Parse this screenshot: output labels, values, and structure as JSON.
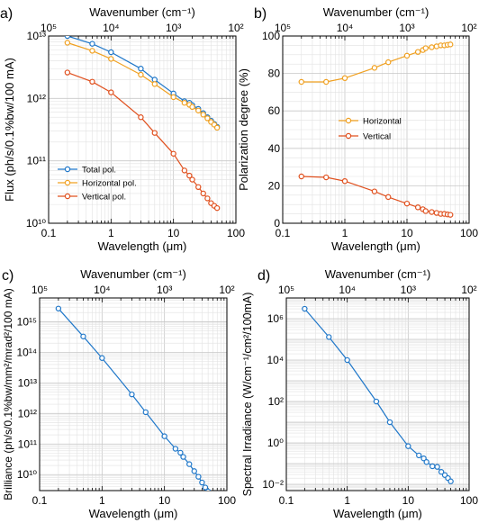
{
  "colors": {
    "total": "#1f77c9",
    "horizontal": "#f0a020",
    "vertical": "#e0501e"
  },
  "chart_data": [
    {
      "type": "line",
      "panel_label": "a)",
      "top_axis_label": "Wavenumber (cm⁻¹)",
      "top_tick_labels": [
        "10⁵",
        "10⁴",
        "10³",
        "10²"
      ],
      "xlabel": "Wavelength (μm)",
      "ylabel": "Flux (ph/s/0.1%bw/100 mA)",
      "xscale": "log",
      "yscale": "log",
      "xlim": [
        0.1,
        100
      ],
      "ylim": [
        10000000000.0,
        10000000000000.0
      ],
      "xtick_labels": [
        "0.1",
        "1",
        "10",
        "100"
      ],
      "ytick_labels": [
        "10¹⁰",
        "10¹¹",
        "10¹²",
        "10¹³"
      ],
      "legend_position": "lower-left",
      "series": [
        {
          "name": "Total pol.",
          "color": "total",
          "x": [
            0.2,
            0.5,
            1,
            3,
            5,
            10,
            15,
            18,
            20,
            25,
            30,
            35,
            40,
            45,
            50
          ],
          "y": [
            10000000000000.0,
            7500000000000.0,
            5500000000000.0,
            3000000000000.0,
            2000000000000.0,
            1200000000000.0,
            900000000000.0,
            850000000000.0,
            780000000000.0,
            680000000000.0,
            580000000000.0,
            500000000000.0,
            440000000000.0,
            390000000000.0,
            350000000000.0
          ]
        },
        {
          "name": "Horizontal pol.",
          "color": "horizontal",
          "x": [
            0.2,
            0.5,
            1,
            3,
            5,
            10,
            15,
            18,
            20,
            25,
            30,
            35,
            40,
            45,
            50
          ],
          "y": [
            7800000000000.0,
            5800000000000.0,
            4300000000000.0,
            2400000000000.0,
            1700000000000.0,
            1050000000000.0,
            850000000000.0,
            790000000000.0,
            730000000000.0,
            640000000000.0,
            550000000000.0,
            480000000000.0,
            420000000000.0,
            380000000000.0,
            340000000000.0
          ]
        },
        {
          "name": "Vertical pol.",
          "color": "vertical",
          "x": [
            0.2,
            0.5,
            1,
            3,
            5,
            10,
            15,
            18,
            20,
            25,
            30,
            35,
            40,
            45,
            50
          ],
          "y": [
            2600000000000.0,
            1850000000000.0,
            1250000000000.0,
            500000000000.0,
            280000000000.0,
            130000000000.0,
            70000000000.0,
            58000000000.0,
            50000000000.0,
            38000000000.0,
            30000000000.0,
            25000000000.0,
            21000000000.0,
            19000000000.0,
            17500000000.0
          ]
        }
      ]
    },
    {
      "type": "line",
      "panel_label": "b)",
      "top_axis_label": "Wavenumber (cm⁻¹)",
      "top_tick_labels": [
        "10⁵",
        "10⁴",
        "10³",
        "10²"
      ],
      "xlabel": "Wavelength (μm)",
      "ylabel": "Polarization degree (%)",
      "xscale": "log",
      "yscale": "linear",
      "xlim": [
        0.1,
        100
      ],
      "ylim": [
        0,
        100
      ],
      "xtick_labels": [
        "0.1",
        "1",
        "10",
        "100"
      ],
      "ytick_values": [
        0,
        20,
        40,
        60,
        80,
        100
      ],
      "ytick_labels": [
        "0",
        "20",
        "40",
        "60",
        "80",
        "100"
      ],
      "legend_position": "center-right",
      "series": [
        {
          "name": "Horizontal",
          "color": "horizontal",
          "x": [
            0.2,
            0.5,
            1,
            3,
            5,
            10,
            15,
            18,
            20,
            25,
            30,
            35,
            40,
            45,
            50
          ],
          "y": [
            75.5,
            75.5,
            77.5,
            83,
            86,
            89.5,
            91.5,
            92.5,
            93.5,
            94,
            94.5,
            95,
            95,
            95.3,
            95.5
          ]
        },
        {
          "name": "Vertical",
          "color": "vertical",
          "x": [
            0.2,
            0.5,
            1,
            3,
            5,
            10,
            15,
            18,
            20,
            25,
            30,
            35,
            40,
            45,
            50
          ],
          "y": [
            25,
            24.5,
            22.5,
            17,
            14,
            10.5,
            8.5,
            7.5,
            6.5,
            6,
            5.5,
            5,
            5,
            4.7,
            4.5
          ]
        }
      ]
    },
    {
      "type": "line",
      "panel_label": "c)",
      "top_axis_label": "Wavenumber (cm⁻¹)",
      "top_tick_labels": [
        "10⁵",
        "10⁴",
        "10³",
        "10²"
      ],
      "xlabel": "Wavelength (μm)",
      "ylabel": "Brilliance (ph/s/0.1%bw/mm²/mrad²/100 mA)",
      "xscale": "log",
      "yscale": "log",
      "xlim": [
        0.1,
        100
      ],
      "ylim": [
        3000000000.0,
        6000000000000000.0
      ],
      "xtick_labels": [
        "0.1",
        "1",
        "10",
        "100"
      ],
      "ytick_values": [
        10000000000.0,
        100000000000.0,
        1000000000000.0,
        10000000000000.0,
        100000000000000.0,
        1000000000000000.0
      ],
      "ytick_labels": [
        "10¹⁰",
        "10¹¹",
        "10¹²",
        "10¹³",
        "10¹⁴",
        "10¹⁵"
      ],
      "series": [
        {
          "name": "",
          "color": "total",
          "x": [
            0.2,
            0.5,
            1,
            3,
            5,
            10,
            15,
            18,
            20,
            25,
            30,
            35,
            40,
            45,
            50
          ],
          "y": [
            2700000000000000.0,
            330000000000000.0,
            65000000000000.0,
            4200000000000.0,
            1100000000000.0,
            180000000000.0,
            70000000000.0,
            52000000000.0,
            38000000000.0,
            22000000000.0,
            13000000000.0,
            8500000000.0,
            5500000000.0,
            3800000000.0,
            2800000000.0
          ]
        }
      ]
    },
    {
      "type": "line",
      "panel_label": "d)",
      "top_axis_label": "Wavenumber (cm⁻¹)",
      "top_tick_labels": [
        "10⁵",
        "10⁴",
        "10³",
        "10²"
      ],
      "xlabel": "Wavelength (μm)",
      "ylabel": "Spectral Irradiance (W/cm⁻¹/cm²/100mA)",
      "xscale": "log",
      "yscale": "log",
      "xlim": [
        0.1,
        100
      ],
      "ylim": [
        0.005,
        10000000.0
      ],
      "xtick_labels": [
        "0.1",
        "1",
        "10",
        "100"
      ],
      "ytick_values": [
        0.01,
        1,
        100,
        10000,
        1000000
      ],
      "ytick_labels": [
        "10⁻²",
        "10⁰",
        "10²",
        "10⁴",
        "10⁶"
      ],
      "series": [
        {
          "name": "",
          "color": "total",
          "x": [
            0.2,
            0.5,
            1,
            3,
            5,
            10,
            15,
            18,
            20,
            25,
            30,
            35,
            40,
            45,
            50
          ],
          "y": [
            3000000.0,
            130000.0,
            10000.0,
            100,
            10,
            0.7,
            0.25,
            0.18,
            0.12,
            0.075,
            0.07,
            0.04,
            0.028,
            0.02,
            0.014
          ]
        }
      ]
    }
  ]
}
